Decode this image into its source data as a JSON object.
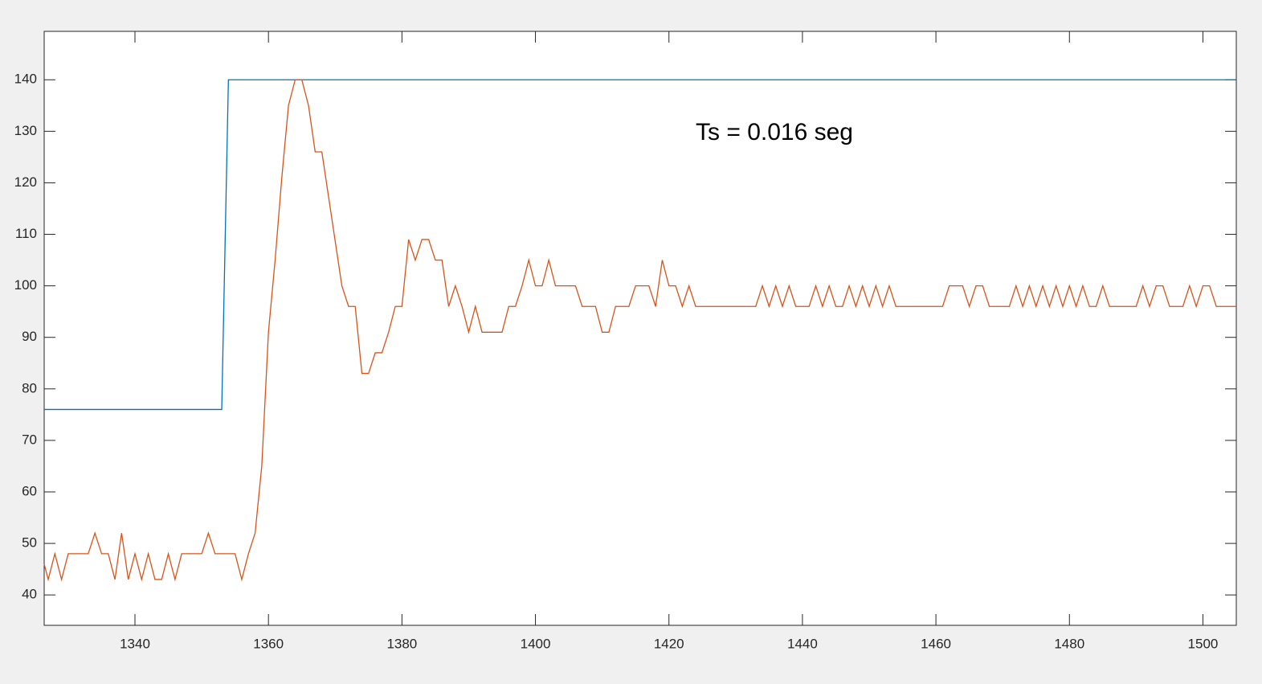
{
  "chart_data": {
    "type": "line",
    "annotation": "Ts = 0.016 seg",
    "xlim": [
      1326.4,
      1505
    ],
    "ylim": [
      34.1,
      149.4
    ],
    "xticks": [
      1340,
      1360,
      1380,
      1400,
      1420,
      1440,
      1460,
      1480,
      1500
    ],
    "yticks": [
      40,
      50,
      60,
      70,
      80,
      90,
      100,
      110,
      120,
      130,
      140
    ],
    "grid": false,
    "series": [
      {
        "color": "#0072bd",
        "x": [
          1326.4,
          1353,
          1354,
          1505
        ],
        "values": [
          76,
          76,
          140,
          140
        ]
      },
      {
        "color": "#d95319",
        "x": [
          1326.4,
          1327,
          1328,
          1329,
          1330,
          1333,
          1334,
          1335,
          1336,
          1337,
          1338,
          1339,
          1340,
          1341,
          1342,
          1343,
          1344,
          1345,
          1346,
          1347,
          1350,
          1351,
          1352,
          1355,
          1356,
          1357,
          1358,
          1359,
          1360,
          1361,
          1362,
          1363,
          1364,
          1365,
          1366,
          1367,
          1368,
          1371,
          1372,
          1373,
          1374,
          1375,
          1376,
          1377,
          1378,
          1379,
          1380,
          1381,
          1382,
          1383,
          1384,
          1385,
          1386,
          1387,
          1388,
          1389,
          1390,
          1391,
          1392,
          1395,
          1396,
          1397,
          1398,
          1399,
          1400,
          1401,
          1402,
          1403,
          1406,
          1407,
          1409,
          1410,
          1411,
          1412,
          1414,
          1415,
          1417,
          1418,
          1419,
          1420,
          1421,
          1422,
          1423,
          1424,
          1433,
          1434,
          1435,
          1436,
          1437,
          1438,
          1439,
          1441,
          1442,
          1443,
          1444,
          1445,
          1446,
          1447,
          1448,
          1449,
          1450,
          1451,
          1452,
          1453,
          1454,
          1461,
          1462,
          1464,
          1465,
          1466,
          1467,
          1468,
          1471,
          1472,
          1473,
          1474,
          1475,
          1476,
          1477,
          1478,
          1479,
          1480,
          1481,
          1482,
          1483,
          1484,
          1485,
          1486,
          1490,
          1491,
          1492,
          1493,
          1494,
          1495,
          1497,
          1498,
          1499,
          1500,
          1501,
          1502,
          1505
        ],
        "values": [
          46,
          43,
          48,
          43,
          48,
          48,
          52,
          48,
          48,
          43,
          52,
          43,
          48,
          43,
          48,
          43,
          43,
          48,
          43,
          48,
          48,
          52,
          48,
          48,
          43,
          48,
          52,
          65,
          91,
          105,
          121,
          135,
          140,
          140,
          135,
          126,
          126,
          100,
          96,
          96,
          83,
          83,
          87,
          87,
          91,
          96,
          96,
          109,
          105,
          109,
          109,
          105,
          105,
          96,
          100,
          96,
          91,
          96,
          91,
          91,
          96,
          96,
          100,
          105,
          100,
          100,
          105,
          100,
          100,
          96,
          96,
          91,
          91,
          96,
          96,
          100,
          100,
          96,
          105,
          100,
          100,
          96,
          100,
          96,
          96,
          100,
          96,
          100,
          96,
          100,
          96,
          96,
          100,
          96,
          100,
          96,
          96,
          100,
          96,
          100,
          96,
          100,
          96,
          100,
          96,
          96,
          100,
          100,
          96,
          100,
          100,
          96,
          96,
          100,
          96,
          100,
          96,
          100,
          96,
          100,
          96,
          100,
          96,
          100,
          96,
          96,
          100,
          96,
          96,
          100,
          96,
          100,
          100,
          96,
          96,
          100,
          96,
          100,
          100,
          96,
          96
        ]
      }
    ]
  }
}
